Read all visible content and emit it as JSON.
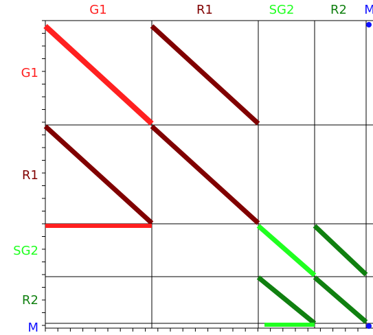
{
  "columns": [
    {
      "label": "G1",
      "color": "#ff2020"
    },
    {
      "label": "R1",
      "color": "#800000"
    },
    {
      "label": "SG2",
      "color": "#20ff20"
    },
    {
      "label": "R2",
      "color": "#108010"
    },
    {
      "label": "M",
      "color": "#1010ff"
    }
  ],
  "rows": [
    {
      "label": "G1",
      "color": "#ff2020"
    },
    {
      "label": "R1",
      "color": "#800000"
    },
    {
      "label": "SG2",
      "color": "#20ff20"
    },
    {
      "label": "R2",
      "color": "#108010"
    },
    {
      "label": "M",
      "color": "#1010ff"
    }
  ]
}
